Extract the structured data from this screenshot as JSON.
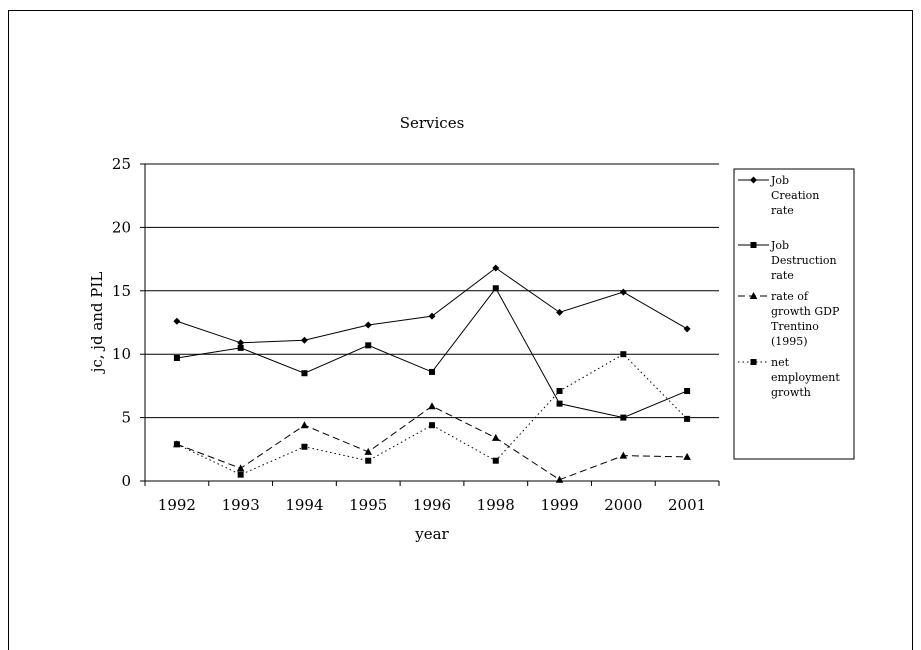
{
  "chart_data": {
    "type": "line",
    "title": "Services",
    "xlabel": "year",
    "ylabel": "jc, jd and PIL",
    "categories": [
      "1992",
      "1993",
      "1994",
      "1995",
      "1996",
      "1998",
      "1999",
      "2000",
      "2001"
    ],
    "ylim": [
      0,
      25
    ],
    "yticks": [
      0,
      5,
      10,
      15,
      20,
      25
    ],
    "grid": "horizontal",
    "legend_position": "right",
    "series": [
      {
        "name": "Job Creation rate",
        "legend_lines": [
          "Job",
          "Creation",
          "rate"
        ],
        "line_style": "solid",
        "marker": "diamond",
        "values": [
          12.6,
          10.9,
          11.1,
          12.3,
          13.0,
          16.8,
          13.3,
          14.9,
          12.0
        ]
      },
      {
        "name": "Job Destruction rate",
        "legend_lines": [
          "Job",
          "Destruction",
          "rate"
        ],
        "line_style": "solid",
        "marker": "square",
        "values": [
          9.7,
          10.5,
          8.5,
          10.7,
          8.6,
          15.2,
          6.1,
          5.0,
          7.1
        ]
      },
      {
        "name": "rate of growth GDP Trentino (1995)",
        "legend_lines": [
          "rate of",
          "growth GDP",
          "Trentino",
          "(1995)"
        ],
        "line_style": "dashed",
        "marker": "triangle",
        "values": [
          2.9,
          1.0,
          4.4,
          2.3,
          5.9,
          3.4,
          0.1,
          2.0,
          1.9
        ]
      },
      {
        "name": "net employment growth",
        "legend_lines": [
          "net",
          "employment",
          "growth"
        ],
        "line_style": "dotted",
        "marker": "square",
        "values": [
          2.9,
          0.5,
          2.7,
          1.6,
          4.4,
          1.6,
          7.1,
          10.0,
          4.9
        ]
      }
    ]
  }
}
